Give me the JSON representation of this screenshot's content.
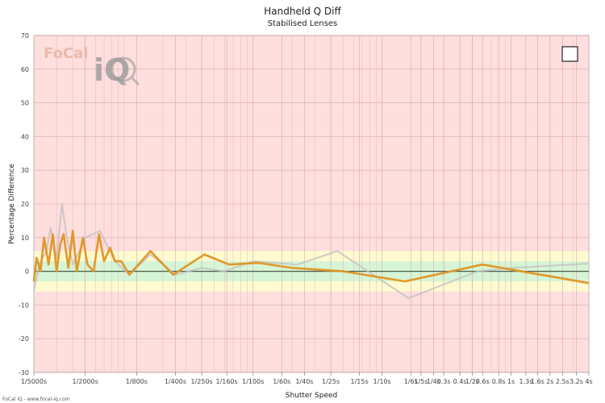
{
  "chart_data": {
    "type": "line",
    "title": "Handheld Q Diff",
    "subtitle": "Stabilised Lenses",
    "xlabel": "Shutter Speed",
    "ylabel": "Percentage Difference",
    "ylim": [
      -30,
      70
    ],
    "yticks": [
      -30,
      -20,
      -10,
      0,
      10,
      20,
      30,
      40,
      50,
      60,
      70
    ],
    "x_scale": "log",
    "x_unit": "seconds",
    "xlim_seconds": [
      0.0002,
      4
    ],
    "xticks": [
      {
        "label": "1/5000s",
        "value": 0.0002
      },
      {
        "label": "1/2000s",
        "value": 0.0005
      },
      {
        "label": "1/800s",
        "value": 0.00125
      },
      {
        "label": "1/400s",
        "value": 0.0025
      },
      {
        "label": "1/250s",
        "value": 0.004
      },
      {
        "label": "1/160s",
        "value": 0.00625
      },
      {
        "label": "1/100s",
        "value": 0.01
      },
      {
        "label": "1/60s",
        "value": 0.01667
      },
      {
        "label": "1/40s",
        "value": 0.025
      },
      {
        "label": "1/25s",
        "value": 0.04
      },
      {
        "label": "1/15s",
        "value": 0.0667
      },
      {
        "label": "1/10s",
        "value": 0.1
      },
      {
        "label": "1/6s",
        "value": 0.1667
      },
      {
        "label": "1/5s",
        "value": 0.2
      },
      {
        "label": "1/4s",
        "value": 0.25
      },
      {
        "label": "0.3s",
        "value": 0.3
      },
      {
        "label": "0.4s",
        "value": 0.4
      },
      {
        "label": "1/2s",
        "value": 0.5
      },
      {
        "label": "0.6s",
        "value": 0.6
      },
      {
        "label": "0.8s",
        "value": 0.8
      },
      {
        "label": "1s",
        "value": 1
      },
      {
        "label": "1.3s",
        "value": 1.3
      },
      {
        "label": "1.6s",
        "value": 1.6
      },
      {
        "label": "2s",
        "value": 2
      },
      {
        "label": "2.5s",
        "value": 2.5
      },
      {
        "label": "3.2s",
        "value": 3.2
      },
      {
        "label": "4s",
        "value": 4
      }
    ],
    "bands": [
      {
        "from": -6,
        "to": 6,
        "color": "#fffad0"
      },
      {
        "from": -3,
        "to": 3,
        "color": "#d6f5d6"
      }
    ],
    "grid": true,
    "series": [
      {
        "color": "#c0c0c0",
        "points": [
          [
            0.0002,
            -6
          ],
          [
            0.00022,
            2
          ],
          [
            0.00025,
            6
          ],
          [
            0.00027,
            13
          ],
          [
            0.0003,
            4
          ],
          [
            0.00033,
            20
          ],
          [
            0.00036,
            10
          ],
          [
            0.0004,
            2
          ],
          [
            0.00045,
            6
          ],
          [
            0.0005,
            10
          ],
          [
            0.00065,
            12
          ],
          [
            0.00085,
            3
          ],
          [
            0.0011,
            -1
          ],
          [
            0.0016,
            5
          ],
          [
            0.0025,
            -1
          ],
          [
            0.004,
            1
          ],
          [
            0.006,
            0
          ],
          [
            0.01,
            3
          ],
          [
            0.022,
            2
          ],
          [
            0.045,
            6
          ],
          [
            0.16,
            -8
          ],
          [
            0.55,
            0
          ],
          [
            1,
            1
          ],
          [
            4,
            2.3
          ]
        ]
      },
      {
        "color": "#e09420",
        "points": [
          [
            0.0002,
            -3
          ],
          [
            0.00021,
            4
          ],
          [
            0.000225,
            0
          ],
          [
            0.00024,
            10
          ],
          [
            0.00026,
            2
          ],
          [
            0.00028,
            11
          ],
          [
            0.0003,
            0
          ],
          [
            0.00032,
            8
          ],
          [
            0.00034,
            11
          ],
          [
            0.00037,
            1
          ],
          [
            0.0004,
            12
          ],
          [
            0.00043,
            0
          ],
          [
            0.00048,
            10
          ],
          [
            0.00052,
            2
          ],
          [
            0.00058,
            0
          ],
          [
            0.00064,
            11
          ],
          [
            0.0007,
            3
          ],
          [
            0.00078,
            7
          ],
          [
            0.00085,
            3
          ],
          [
            0.00095,
            3
          ],
          [
            0.0011,
            -1
          ],
          [
            0.0016,
            6
          ],
          [
            0.0024,
            -1
          ],
          [
            0.0042,
            5
          ],
          [
            0.0065,
            2
          ],
          [
            0.011,
            2.5
          ],
          [
            0.02,
            1
          ],
          [
            0.05,
            0
          ],
          [
            0.15,
            -3
          ],
          [
            0.6,
            2
          ],
          [
            4,
            -3.5
          ]
        ]
      }
    ],
    "legend_checkbox": "top-right",
    "watermark": [
      "FoCal",
      "iQ"
    ]
  },
  "footer": "FoCal iQ - www.focal-iq.com"
}
